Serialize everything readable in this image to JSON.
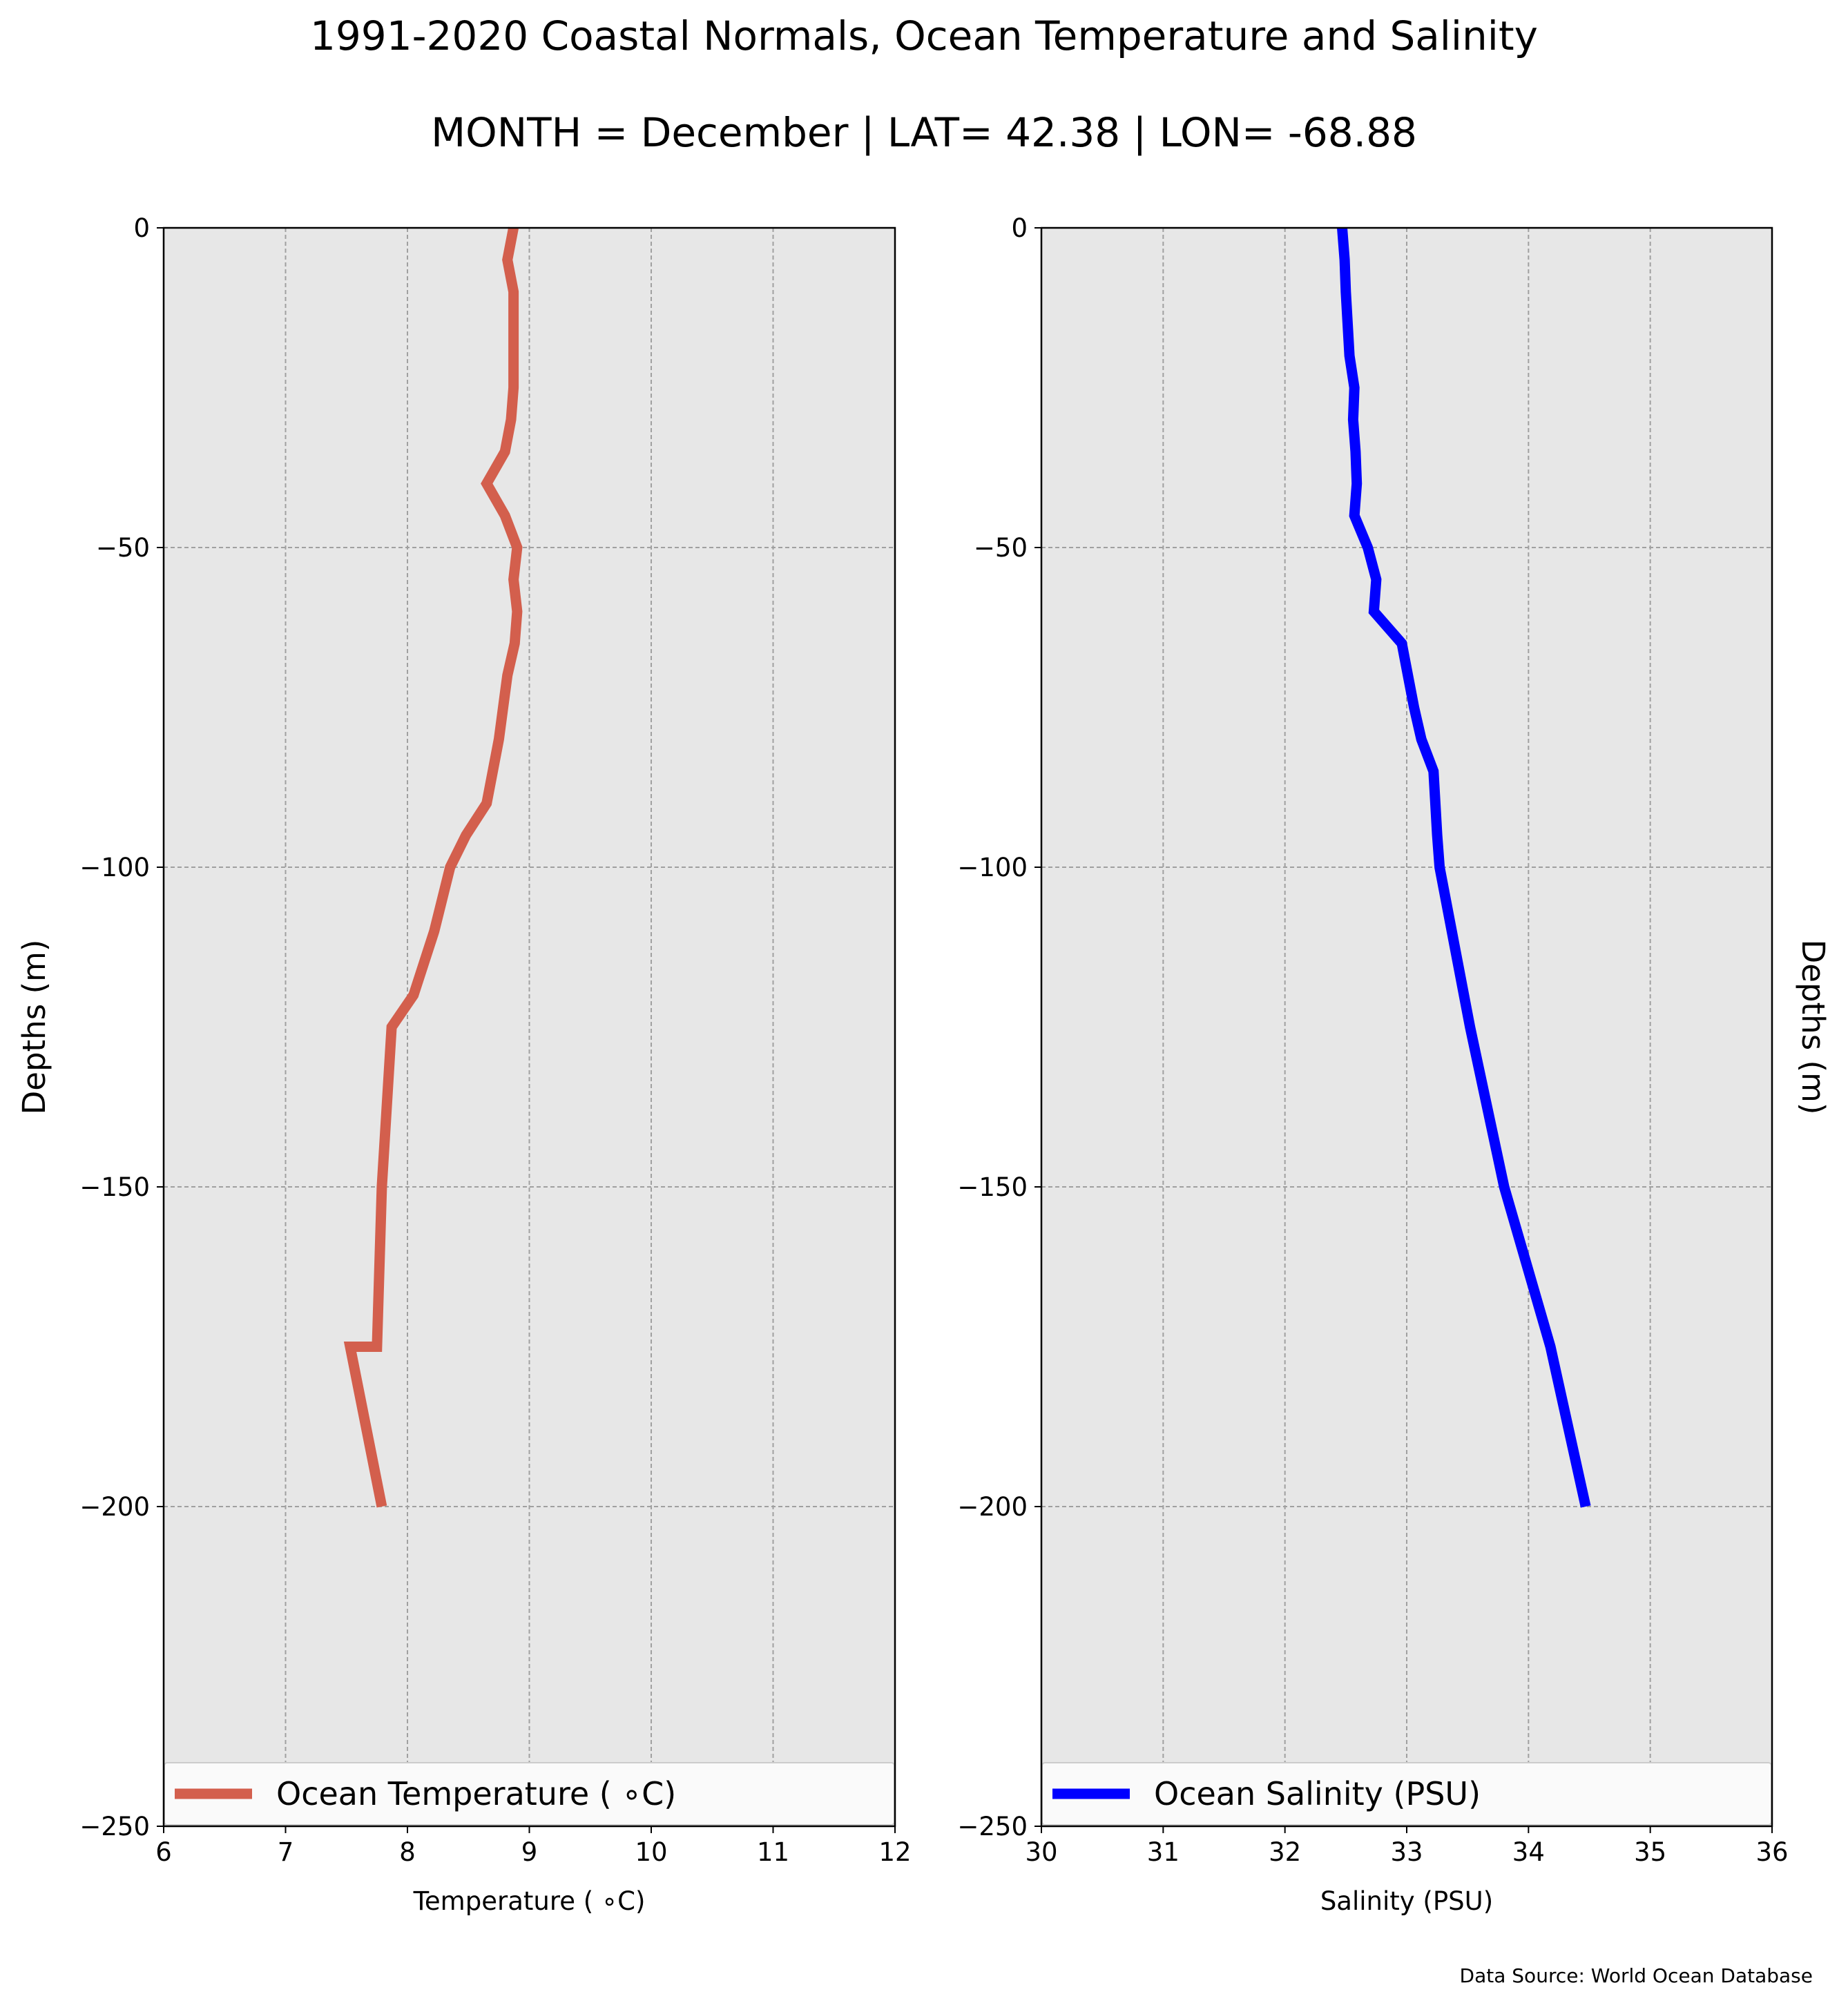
{
  "title": "1991-2020 Coastal Normals, Ocean Temperature and Salinity",
  "subtitle": "MONTH = December | LAT= 42.38 | LON= -68.88",
  "source": "Data Source: World Ocean Database",
  "chart_data": [
    {
      "type": "line",
      "xlabel": "Temperature ( ∘C)",
      "ylabel": "Depths (m)",
      "xlim": [
        6,
        12
      ],
      "ylim": [
        -250,
        0
      ],
      "xticks": [
        "6",
        "7",
        "8",
        "9",
        "10",
        "11",
        "12"
      ],
      "yticks": [
        "0",
        "−50",
        "−100",
        "−150",
        "−200",
        "−250"
      ],
      "grid": true,
      "legend_position": "bottom",
      "color": "#d35f4d",
      "series": [
        {
          "name": "Ocean Temperature ( ∘C)",
          "x": [
            8.87,
            8.82,
            8.87,
            8.87,
            8.87,
            8.87,
            8.85,
            8.8,
            8.65,
            8.8,
            8.9,
            8.87,
            8.9,
            8.88,
            8.82,
            8.75,
            8.65,
            8.48,
            8.35,
            8.22,
            8.05,
            7.87,
            7.79,
            7.75,
            7.53,
            7.79
          ],
          "y": [
            0,
            -5,
            -10,
            -15,
            -20,
            -25,
            -30,
            -35,
            -40,
            -45,
            -50,
            -55,
            -60,
            -65,
            -70,
            -80,
            -90,
            -95,
            -100,
            -110,
            -120,
            -125,
            -150,
            -175,
            -175,
            -200
          ]
        }
      ]
    },
    {
      "type": "line",
      "xlabel": "Salinity (PSU)",
      "ylabel": "Depths (m)",
      "xlim": [
        30,
        36
      ],
      "ylim": [
        -250,
        0
      ],
      "xticks": [
        "30",
        "31",
        "32",
        "33",
        "34",
        "35",
        "36"
      ],
      "yticks": [
        "0",
        "−50",
        "−100",
        "−150",
        "−200",
        "−250"
      ],
      "grid": true,
      "legend_position": "bottom",
      "color": "#0000ff",
      "series": [
        {
          "name": "Ocean Salinity (PSU)",
          "x": [
            32.47,
            32.49,
            32.5,
            32.53,
            32.57,
            32.56,
            32.58,
            32.59,
            32.57,
            32.68,
            32.75,
            32.73,
            32.96,
            33.06,
            33.12,
            33.22,
            33.25,
            33.27,
            33.52,
            33.8,
            34.18,
            34.47
          ],
          "y": [
            0,
            -5,
            -10,
            -20,
            -25,
            -30,
            -35,
            -40,
            -45,
            -50,
            -55,
            -60,
            -65,
            -75,
            -80,
            -85,
            -95,
            -100,
            -125,
            -150,
            -175,
            -200
          ]
        }
      ]
    }
  ]
}
